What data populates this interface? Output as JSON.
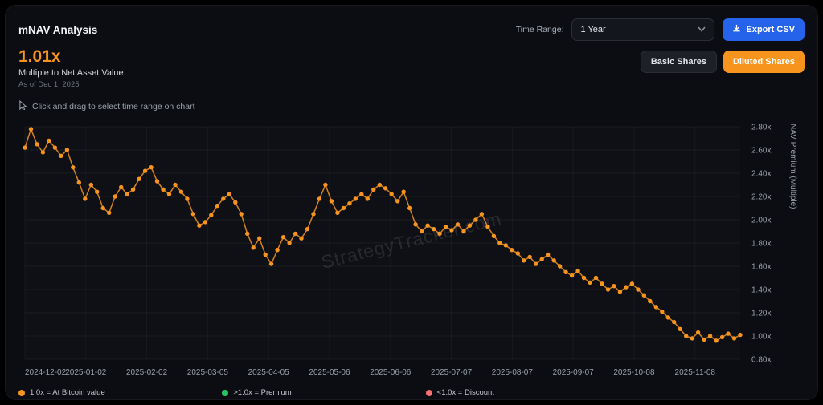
{
  "header": {
    "title": "mNAV Analysis"
  },
  "controls": {
    "time_range_label": "Time Range:",
    "time_range_value": "1 Year",
    "export_label": "Export CSV"
  },
  "stat": {
    "value": "1.01x",
    "subtitle": "Multiple to Net Asset Value",
    "as_of": "As of Dec 1, 2025"
  },
  "share_toggle": {
    "basic_label": "Basic Shares",
    "diluted_label": "Diluted Shares",
    "active": "diluted"
  },
  "hint": {
    "text": "Click and drag to select time range on chart"
  },
  "watermark": "StrategyTracker.com",
  "legend": {
    "items": [
      {
        "label": "1.0x = At Bitcoin value",
        "color": "#f7941e"
      },
      {
        "label": ">1.0x = Premium",
        "color": "#22c55e"
      },
      {
        "label": "<1.0x = Discount",
        "color": "#f87171"
      }
    ]
  },
  "chart_data": {
    "type": "line",
    "title": "mNAV Analysis",
    "ylabel": "NAV Premium (Multiple)",
    "ylim": [
      0.8,
      2.8
    ],
    "y_tick_step": 0.2,
    "y_tick_suffix": "x",
    "color": "#f7941e",
    "grid": true,
    "x_tick_labels": [
      "2024-12-02",
      "2025-01-02",
      "2025-02-02",
      "2025-03-05",
      "2025-04-05",
      "2025-05-06",
      "2025-06-06",
      "2025-07-07",
      "2025-08-07",
      "2025-09-07",
      "2025-10-08",
      "2025-11-08"
    ],
    "x_tick_days": [
      0,
      31,
      62,
      93,
      124,
      155,
      186,
      217,
      248,
      279,
      310,
      341
    ],
    "total_days": 364,
    "values": [
      2.62,
      2.78,
      2.65,
      2.58,
      2.68,
      2.62,
      2.55,
      2.6,
      2.45,
      2.32,
      2.18,
      2.3,
      2.24,
      2.1,
      2.06,
      2.2,
      2.28,
      2.22,
      2.26,
      2.35,
      2.42,
      2.45,
      2.33,
      2.26,
      2.22,
      2.3,
      2.24,
      2.18,
      2.05,
      1.95,
      1.98,
      2.04,
      2.12,
      2.18,
      2.22,
      2.15,
      2.05,
      1.88,
      1.76,
      1.84,
      1.7,
      1.62,
      1.74,
      1.85,
      1.8,
      1.88,
      1.84,
      1.92,
      2.05,
      2.18,
      2.3,
      2.16,
      2.06,
      2.1,
      2.14,
      2.18,
      2.22,
      2.18,
      2.26,
      2.3,
      2.27,
      2.22,
      2.16,
      2.24,
      2.1,
      1.96,
      1.9,
      1.95,
      1.92,
      1.88,
      1.94,
      1.91,
      1.96,
      1.9,
      1.95,
      2.0,
      2.05,
      1.94,
      1.86,
      1.8,
      1.78,
      1.74,
      1.71,
      1.65,
      1.68,
      1.62,
      1.66,
      1.7,
      1.65,
      1.6,
      1.55,
      1.52,
      1.56,
      1.5,
      1.46,
      1.5,
      1.45,
      1.4,
      1.43,
      1.38,
      1.42,
      1.45,
      1.4,
      1.35,
      1.3,
      1.25,
      1.21,
      1.16,
      1.12,
      1.06,
      1.0,
      0.98,
      1.03,
      0.97,
      1.0,
      0.96,
      0.99,
      1.02,
      0.98,
      1.01
    ]
  }
}
